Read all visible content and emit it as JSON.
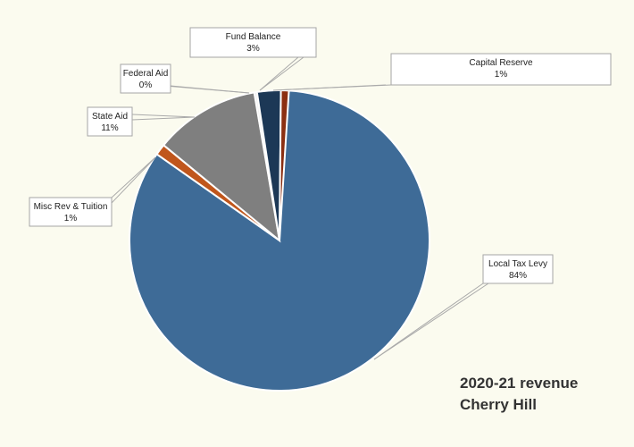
{
  "chart_data": {
    "type": "pie",
    "title_line1": "2020-21 revenue",
    "title_line2": "Cherry Hill",
    "slices": [
      {
        "name": "Local Tax Levy",
        "value": 84,
        "label": "84%",
        "color": "#3e6b97"
      },
      {
        "name": "Misc Rev & Tuition",
        "value": 1,
        "label": "1%",
        "color": "#c0561c"
      },
      {
        "name": "State Aid",
        "value": 11,
        "label": "11%",
        "color": "#7f7f7f"
      },
      {
        "name": "Federal Aid",
        "value": 0,
        "label": "0%",
        "color": "#f2f2f2"
      },
      {
        "name": "Fund Balance",
        "value": 3,
        "label": "3%",
        "color": "#1c3856"
      },
      {
        "name": "Capital Reserve",
        "value": 1,
        "label": "1%",
        "color": "#8b2f12"
      }
    ],
    "start": "top",
    "direction": "clockwise"
  }
}
